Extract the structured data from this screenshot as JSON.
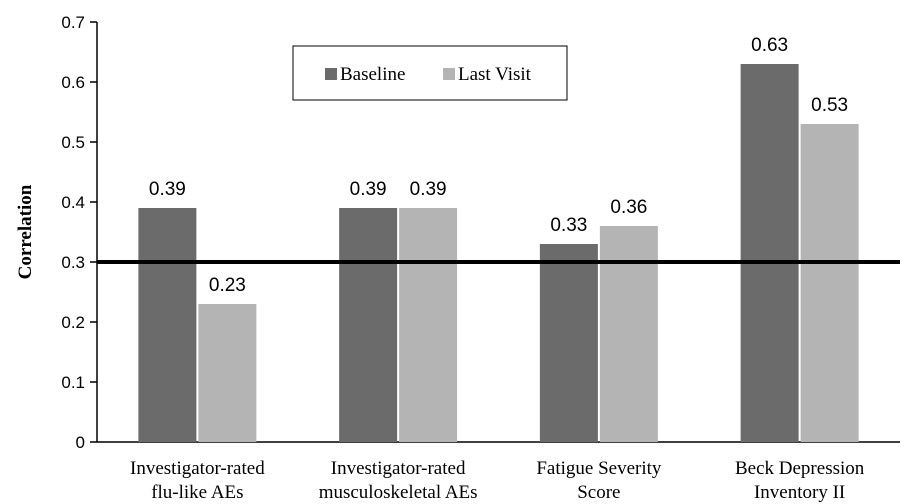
{
  "colors": {
    "baseline": "#6b6b6b",
    "last_visit": "#b4b4b4",
    "axis": "#000000",
    "threshold": "#000000"
  },
  "chart_data": {
    "type": "bar",
    "categories": [
      [
        "Investigator-rated",
        "flu-like AEs"
      ],
      [
        "Investigator-rated",
        "musculoskeletal AEs"
      ],
      [
        "Fatigue Severity",
        "Score"
      ],
      [
        "Beck Depression",
        "Inventory II"
      ]
    ],
    "series": [
      {
        "name": "Baseline",
        "values": [
          0.39,
          0.39,
          0.33,
          0.63
        ],
        "labels": [
          "0.39",
          "0.39",
          "0.33",
          "0.63"
        ]
      },
      {
        "name": "Last Visit",
        "values": [
          0.23,
          0.39,
          0.36,
          0.53
        ],
        "labels": [
          "0.23",
          "0.39",
          "0.36",
          "0.53"
        ]
      }
    ],
    "ylabel": "Correlation",
    "ylim": [
      0,
      0.7
    ],
    "yticks": [
      0,
      0.1,
      0.2,
      0.3,
      0.4,
      0.5,
      0.6,
      0.7
    ],
    "ytick_labels": [
      "0",
      "0.1",
      "0.2",
      "0.3",
      "0.4",
      "0.5",
      "0.6",
      "0.7"
    ],
    "reference_line": 0.3,
    "legend_position": "top-center",
    "grid": false
  }
}
